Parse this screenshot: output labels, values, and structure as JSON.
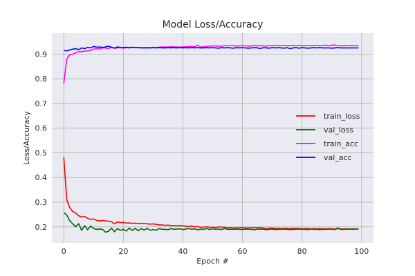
{
  "chart_data": {
    "type": "line",
    "title": "Model Loss/Accuracy",
    "xlabel": "Epoch #",
    "ylabel": "Loss/Accuracy",
    "xlim": [
      -4,
      104
    ],
    "ylim": [
      0.135,
      0.985
    ],
    "xticks": [
      0,
      20,
      40,
      60,
      80,
      100
    ],
    "yticks": [
      0.2,
      0.3,
      0.4,
      0.5,
      0.6,
      0.7,
      0.8,
      0.9
    ],
    "grid": true,
    "legend_position": "center-right",
    "series": [
      {
        "name": "train_loss",
        "color": "#ff0000",
        "values": [
          0.483,
          0.31,
          0.278,
          0.262,
          0.256,
          0.245,
          0.24,
          0.242,
          0.235,
          0.23,
          0.232,
          0.226,
          0.224,
          0.226,
          0.224,
          0.223,
          0.221,
          0.212,
          0.22,
          0.217,
          0.218,
          0.215,
          0.216,
          0.214,
          0.215,
          0.214,
          0.213,
          0.214,
          0.212,
          0.211,
          0.212,
          0.21,
          0.208,
          0.208,
          0.206,
          0.207,
          0.205,
          0.205,
          0.204,
          0.205,
          0.204,
          0.203,
          0.202,
          0.203,
          0.2,
          0.201,
          0.198,
          0.199,
          0.2,
          0.198,
          0.198,
          0.197,
          0.2,
          0.199,
          0.198,
          0.196,
          0.197,
          0.195,
          0.196,
          0.196,
          0.197,
          0.195,
          0.196,
          0.196,
          0.197,
          0.196,
          0.197,
          0.195,
          0.194,
          0.195,
          0.195,
          0.194,
          0.194,
          0.193,
          0.194,
          0.194,
          0.193,
          0.194,
          0.193,
          0.194,
          0.192,
          0.193,
          0.193,
          0.192,
          0.193,
          0.192,
          0.193,
          0.192,
          0.192,
          0.193,
          0.192,
          0.191,
          0.192,
          0.192,
          0.191,
          0.192,
          0.191,
          0.192,
          0.191,
          0.192
        ]
      },
      {
        "name": "val_loss",
        "color": "#006400",
        "values": [
          0.258,
          0.248,
          0.225,
          0.212,
          0.2,
          0.213,
          0.186,
          0.205,
          0.188,
          0.203,
          0.193,
          0.19,
          0.191,
          0.19,
          0.178,
          0.182,
          0.195,
          0.18,
          0.193,
          0.186,
          0.19,
          0.183,
          0.195,
          0.185,
          0.194,
          0.184,
          0.193,
          0.187,
          0.194,
          0.186,
          0.189,
          0.186,
          0.193,
          0.19,
          0.19,
          0.188,
          0.193,
          0.19,
          0.191,
          0.192,
          0.189,
          0.191,
          0.193,
          0.19,
          0.192,
          0.188,
          0.191,
          0.19,
          0.193,
          0.189,
          0.192,
          0.19,
          0.191,
          0.189,
          0.193,
          0.19,
          0.19,
          0.19,
          0.191,
          0.19,
          0.189,
          0.191,
          0.19,
          0.19,
          0.188,
          0.191,
          0.19,
          0.191,
          0.188,
          0.19,
          0.191,
          0.189,
          0.19,
          0.19,
          0.191,
          0.19,
          0.189,
          0.19,
          0.19,
          0.191,
          0.19,
          0.19,
          0.189,
          0.191,
          0.19,
          0.19,
          0.189,
          0.19,
          0.19,
          0.191,
          0.19,
          0.189,
          0.196,
          0.189,
          0.19,
          0.19,
          0.191,
          0.19,
          0.191,
          0.191
        ]
      },
      {
        "name": "train_acc",
        "color": "#ff00ff",
        "values": [
          0.782,
          0.88,
          0.898,
          0.9,
          0.905,
          0.91,
          0.91,
          0.912,
          0.913,
          0.915,
          0.92,
          0.922,
          0.921,
          0.925,
          0.925,
          0.922,
          0.928,
          0.924,
          0.925,
          0.926,
          0.924,
          0.926,
          0.927,
          0.927,
          0.926,
          0.926,
          0.926,
          0.926,
          0.926,
          0.926,
          0.927,
          0.926,
          0.928,
          0.929,
          0.929,
          0.928,
          0.93,
          0.929,
          0.929,
          0.928,
          0.93,
          0.929,
          0.931,
          0.93,
          0.93,
          0.936,
          0.928,
          0.93,
          0.931,
          0.932,
          0.933,
          0.933,
          0.932,
          0.932,
          0.934,
          0.934,
          0.934,
          0.934,
          0.933,
          0.933,
          0.934,
          0.934,
          0.932,
          0.933,
          0.935,
          0.933,
          0.935,
          0.933,
          0.932,
          0.934,
          0.934,
          0.934,
          0.935,
          0.934,
          0.934,
          0.935,
          0.934,
          0.935,
          0.935,
          0.935,
          0.934,
          0.934,
          0.934,
          0.935,
          0.935,
          0.935,
          0.934,
          0.935,
          0.936,
          0.935,
          0.936,
          0.937,
          0.934,
          0.935,
          0.933,
          0.935,
          0.935,
          0.934,
          0.934,
          0.934
        ]
      },
      {
        "name": "val_acc",
        "color": "#0000ff",
        "values": [
          0.915,
          0.913,
          0.917,
          0.92,
          0.922,
          0.918,
          0.925,
          0.922,
          0.927,
          0.925,
          0.931,
          0.928,
          0.929,
          0.927,
          0.929,
          0.932,
          0.928,
          0.924,
          0.929,
          0.927,
          0.926,
          0.928,
          0.925,
          0.928,
          0.927,
          0.926,
          0.925,
          0.925,
          0.925,
          0.925,
          0.926,
          0.925,
          0.926,
          0.925,
          0.925,
          0.926,
          0.925,
          0.926,
          0.925,
          0.926,
          0.925,
          0.926,
          0.925,
          0.926,
          0.925,
          0.926,
          0.925,
          0.925,
          0.926,
          0.925,
          0.926,
          0.925,
          0.924,
          0.926,
          0.925,
          0.926,
          0.925,
          0.924,
          0.926,
          0.925,
          0.926,
          0.925,
          0.924,
          0.925,
          0.926,
          0.925,
          0.923,
          0.926,
          0.925,
          0.924,
          0.926,
          0.925,
          0.926,
          0.925,
          0.924,
          0.926,
          0.922,
          0.925,
          0.926,
          0.924,
          0.926,
          0.925,
          0.924,
          0.925,
          0.926,
          0.925,
          0.926,
          0.925,
          0.925,
          0.925,
          0.924,
          0.925,
          0.926,
          0.925,
          0.925,
          0.925,
          0.925,
          0.925,
          0.925,
          0.925
        ]
      }
    ]
  }
}
